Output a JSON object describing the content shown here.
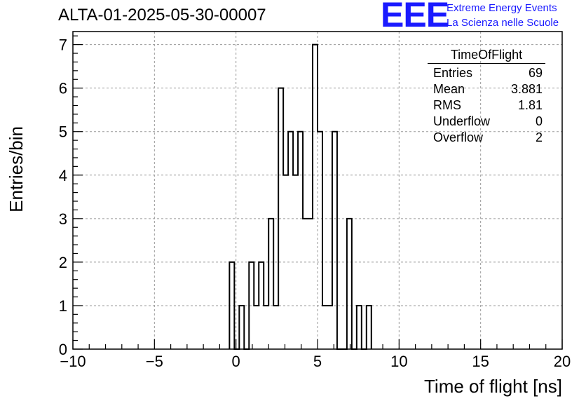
{
  "chart_data": {
    "type": "bar",
    "title": "ALTA-01-2025-05-30-00007",
    "xlabel": "Time of flight [ns]",
    "ylabel": "Entries/bin",
    "xlim": [
      -10,
      20
    ],
    "ylim": [
      0,
      7.3
    ],
    "grid": true,
    "bin_width": 0.3,
    "x_ticks": [
      -10,
      -5,
      0,
      5,
      10,
      15,
      20
    ],
    "x_tick_labels": [
      "−10",
      "−5",
      "0",
      "5",
      "10",
      "15",
      "20"
    ],
    "y_ticks": [
      0,
      1,
      2,
      3,
      4,
      5,
      6,
      7
    ],
    "y_tick_labels": [
      "0",
      "1",
      "2",
      "3",
      "4",
      "5",
      "6",
      "7"
    ],
    "bins": [
      {
        "x": -0.4,
        "value": 2
      },
      {
        "x": -0.1,
        "value": 0
      },
      {
        "x": 0.2,
        "value": 1
      },
      {
        "x": 0.5,
        "value": 0
      },
      {
        "x": 0.8,
        "value": 2
      },
      {
        "x": 1.1,
        "value": 1
      },
      {
        "x": 1.4,
        "value": 2
      },
      {
        "x": 1.7,
        "value": 1
      },
      {
        "x": 2.0,
        "value": 3
      },
      {
        "x": 2.3,
        "value": 1
      },
      {
        "x": 2.6,
        "value": 6
      },
      {
        "x": 2.9,
        "value": 4
      },
      {
        "x": 3.2,
        "value": 5
      },
      {
        "x": 3.5,
        "value": 4
      },
      {
        "x": 3.8,
        "value": 5
      },
      {
        "x": 4.1,
        "value": 3
      },
      {
        "x": 4.4,
        "value": 3
      },
      {
        "x": 4.7,
        "value": 7
      },
      {
        "x": 5.0,
        "value": 5
      },
      {
        "x": 5.3,
        "value": 1
      },
      {
        "x": 5.6,
        "value": 1
      },
      {
        "x": 5.9,
        "value": 5
      },
      {
        "x": 6.2,
        "value": 0
      },
      {
        "x": 6.5,
        "value": 0
      },
      {
        "x": 6.8,
        "value": 3
      },
      {
        "x": 7.1,
        "value": 0
      },
      {
        "x": 7.4,
        "value": 1
      },
      {
        "x": 7.7,
        "value": 0
      },
      {
        "x": 8.0,
        "value": 1
      }
    ],
    "stats_box": {
      "title": "TimeOfFlight",
      "rows": [
        {
          "label": "Entries",
          "value": "69"
        },
        {
          "label": "Mean",
          "value": "3.881"
        },
        {
          "label": "RMS",
          "value": "1.81"
        },
        {
          "label": "Underflow",
          "value": "0"
        },
        {
          "label": "Overflow",
          "value": "2"
        }
      ]
    }
  },
  "logo": {
    "mark": "EEE",
    "line1": "Extreme Energy Events",
    "line2": "La Scienza nelle Scuole",
    "color": "#1a1aff"
  }
}
